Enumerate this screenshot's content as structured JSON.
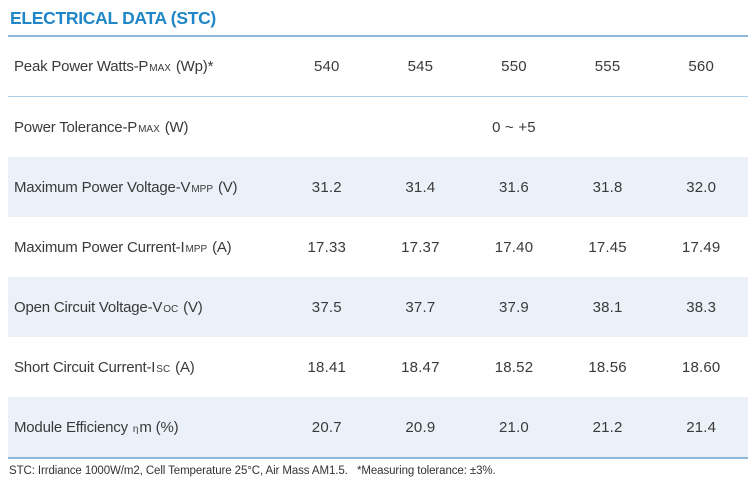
{
  "title": "ELECTRICAL DATA (STC)",
  "colors": {
    "accent_blue": "#1f86c7",
    "rule_strong": "#8fb8d8",
    "rule_thin": "#aecde6",
    "row_shade": "#eaf1f8",
    "text": "#3a3a3a"
  },
  "table": {
    "rows": [
      {
        "label_pre": "Peak Power Watts-P",
        "label_sub": "MAX",
        "label_post": " (Wp)*",
        "values": [
          "540",
          "545",
          "550",
          "555",
          "560"
        ]
      },
      {
        "label_pre": "Power Tolerance-P",
        "label_sub": "MAX",
        "label_post": " (W)",
        "values": [
          "",
          "",
          "0 ~ +5",
          "",
          ""
        ]
      },
      {
        "label_pre": "Maximum Power Voltage-V",
        "label_sub": "MPP",
        "label_post": " (V)",
        "values": [
          "31.2",
          "31.4",
          "31.6",
          "31.8",
          "32.0"
        ]
      },
      {
        "label_pre": "Maximum Power Current-I",
        "label_sub": "MPP",
        "label_post": " (A)",
        "values": [
          "17.33",
          "17.37",
          "17.40",
          "17.45",
          "17.49"
        ]
      },
      {
        "label_pre": "Open Circuit Voltage-V",
        "label_sub": "OC",
        "label_post": " (V)",
        "values": [
          "37.5",
          "37.7",
          "37.9",
          "38.1",
          "38.3"
        ]
      },
      {
        "label_pre": "Short Circuit Current-I",
        "label_sub": "SC",
        "label_post": " (A)",
        "values": [
          "18.41",
          "18.47",
          "18.52",
          "18.56",
          "18.60"
        ]
      },
      {
        "label_pre": "Module Efficiency ",
        "label_sub": "η",
        "label_post": "m (%)",
        "values": [
          "20.7",
          "20.9",
          "21.0",
          "21.2",
          "21.4"
        ]
      }
    ]
  },
  "footnote": "STC: Irrdiance 1000W/m2, Cell Temperature 25°C, Air Mass AM1.5.   *Measuring tolerance: ±3%."
}
